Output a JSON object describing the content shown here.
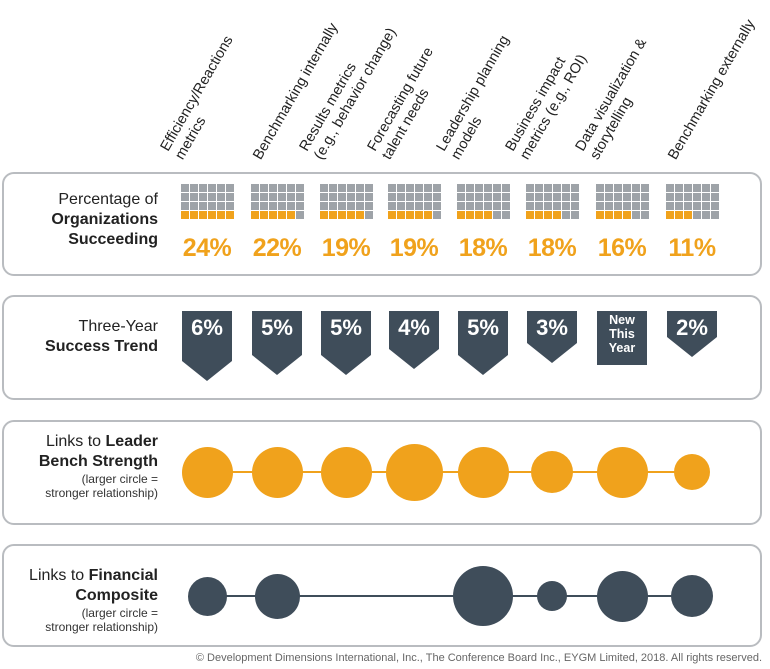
{
  "chart_data": {
    "type": "table",
    "columns": [
      "Efficiency/Reactions metrics",
      "Benchmarking internally",
      "Results metrics (e.g., behavior change)",
      "Forecasting future talent needs",
      "Leadership planning models",
      "Business impact metrics (e.g., ROI)",
      "Data visualization & storytelling",
      "Benchmarking externally"
    ],
    "column_lines": [
      [
        "Efficiency/Reactions",
        "metrics"
      ],
      [
        "Benchmarking internally"
      ],
      [
        "Results metrics",
        "(e.g., behavior change)"
      ],
      [
        "Forecasting future",
        "talent needs"
      ],
      [
        "Leadership planning",
        "models"
      ],
      [
        "Business impact",
        "metrics (e.g., ROI)"
      ],
      [
        "Data visualization &",
        "storytelling"
      ],
      [
        "Benchmarking externally"
      ]
    ],
    "percent_succeeding": [
      24,
      22,
      19,
      19,
      18,
      18,
      16,
      11
    ],
    "percent_labels": [
      "24%",
      "22%",
      "19%",
      "19%",
      "18%",
      "18%",
      "16%",
      "11%"
    ],
    "three_year_trend": [
      6,
      5,
      5,
      4,
      5,
      3,
      null,
      2
    ],
    "three_year_trend_labels": [
      "6%",
      "5%",
      "5%",
      "4%",
      "5%",
      "3%",
      "New This Year",
      "2%"
    ],
    "leader_bench_strength_relative_size": [
      0.85,
      0.85,
      0.85,
      0.95,
      0.85,
      0.7,
      0.85,
      0.6
    ],
    "financial_composite_relative_size": [
      0.65,
      0.75,
      0,
      0,
      1.0,
      0.5,
      0.85,
      0.7
    ],
    "colors": {
      "orange": "#f0a21c",
      "slate": "#3f4d5a",
      "grey_square": "#9ea3a8",
      "panel_border": "#b9bcc0"
    }
  },
  "rows": {
    "percentage": {
      "line1": "Percentage of",
      "line2": "Organizations",
      "line3": "Succeeding"
    },
    "trend": {
      "line1": "Three-Year",
      "line2": "Success Trend"
    },
    "leader": {
      "line1": "Links to ",
      "line1_bold": "Leader",
      "line2": "Bench Strength",
      "note1": "(larger circle =",
      "note2": "stronger relationship)"
    },
    "financial": {
      "line1": "Links to ",
      "line1_bold": "Financial",
      "line2": "Composite",
      "note1": "(larger circle =",
      "note2": "stronger relationship)"
    }
  },
  "footer": "© Development Dimensions International, Inc., The Conference Board Inc., EYGM Limited, 2018. All rights reserved."
}
